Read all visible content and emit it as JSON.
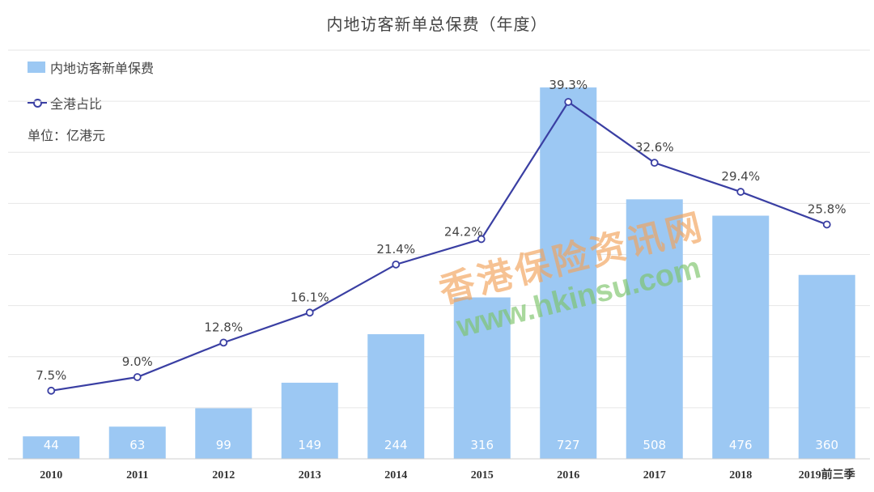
{
  "chart_data": {
    "type": "bar",
    "title": "内地访客新单总保费（年度）",
    "unit": "单位：亿港元",
    "categories": [
      "2010",
      "2011",
      "2012",
      "2013",
      "2014",
      "2015",
      "2016",
      "2017",
      "2018",
      "2019前三季"
    ],
    "series": [
      {
        "name": "内地访客新单保费",
        "type": "bar",
        "values": [
          44,
          63,
          99,
          149,
          244,
          316,
          727,
          508,
          476,
          360
        ],
        "color": "#9cc8f3"
      },
      {
        "name": "全港占比",
        "type": "line",
        "values": [
          7.5,
          9.0,
          12.8,
          16.1,
          21.4,
          24.2,
          39.3,
          32.6,
          29.4,
          25.8
        ],
        "color": "#3a3fa3"
      }
    ],
    "bar_labels": [
      "44",
      "63",
      "99",
      "149",
      "244",
      "316",
      "727",
      "508",
      "476",
      "360"
    ],
    "line_labels": [
      "7.5%",
      "9.0%",
      "12.8%",
      "16.1%",
      "21.4%",
      "24.2%",
      "39.3%",
      "32.6%",
      "29.4%",
      "25.8%"
    ],
    "ylim": [
      0,
      800
    ],
    "ylim_right": [
      0,
      45
    ],
    "grid": true,
    "legend_position": "top-left"
  },
  "watermark": {
    "line1": "香港保险资讯网",
    "line2": "www.hkinsu.com"
  }
}
